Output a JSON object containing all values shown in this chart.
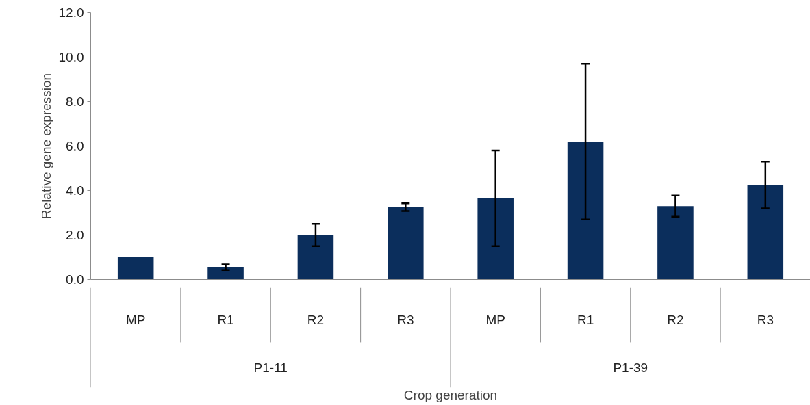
{
  "chart_data": {
    "type": "bar",
    "xlabel": "Crop generation",
    "ylabel": "Relative gene expression",
    "categories": [
      "MP",
      "R1",
      "R2",
      "R3",
      "MP",
      "R1",
      "R2",
      "R3"
    ],
    "values": [
      1.0,
      0.55,
      2.0,
      3.25,
      3.65,
      6.2,
      3.3,
      4.25
    ],
    "errors": [
      null,
      0.13,
      0.5,
      0.17,
      2.15,
      3.5,
      0.48,
      1.05
    ],
    "color": "#0b2e5c",
    "annotations": [
      "P1-11",
      "P1-39"
    ],
    "ylim": [
      0,
      12
    ],
    "yticks": [
      {
        "value": 0,
        "label": "0.0"
      },
      {
        "value": 2,
        "label": "2.0"
      },
      {
        "value": 4,
        "label": "4.0"
      },
      {
        "value": 6,
        "label": "6.0"
      },
      {
        "value": 8,
        "label": "8.0"
      },
      {
        "value": 10,
        "label": "10.0"
      },
      {
        "value": 12,
        "label": "12.0"
      }
    ],
    "grid": false,
    "legend": false
  }
}
